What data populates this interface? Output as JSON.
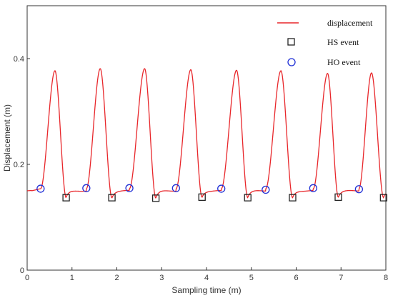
{
  "chart_data": {
    "type": "line",
    "xlabel": "Sampling time (m)",
    "ylabel": "Displacement (m)",
    "xlim": [
      0,
      8
    ],
    "ylim": [
      0,
      0.5
    ],
    "xticks": [
      "0",
      "1",
      "2",
      "3",
      "4",
      "5",
      "6",
      "7",
      "8"
    ],
    "yticks": [
      {
        "value": 0,
        "label": "0"
      },
      {
        "value": 0.2,
        "label": "0.2"
      },
      {
        "value": 0.4,
        "label": "0.4"
      }
    ],
    "grid": false,
    "legend_position": "top-right",
    "series": [
      {
        "name": "displacement",
        "kind": "line",
        "color": "#e8262a",
        "baseline": 0.15,
        "cycles": [
          {
            "start": 0.3,
            "peak_x": 0.62,
            "peak_y": 0.377,
            "trough_x": 0.87,
            "trough_y": 0.137
          },
          {
            "start": 1.32,
            "peak_x": 1.63,
            "peak_y": 0.381,
            "trough_x": 1.89,
            "trough_y": 0.137
          },
          {
            "start": 2.28,
            "peak_x": 2.62,
            "peak_y": 0.381,
            "trough_x": 2.87,
            "trough_y": 0.136
          },
          {
            "start": 3.32,
            "peak_x": 3.65,
            "peak_y": 0.379,
            "trough_x": 3.9,
            "trough_y": 0.138
          },
          {
            "start": 4.33,
            "peak_x": 4.67,
            "peak_y": 0.378,
            "trough_x": 4.92,
            "trough_y": 0.137
          },
          {
            "start": 5.32,
            "peak_x": 5.66,
            "peak_y": 0.377,
            "trough_x": 5.92,
            "trough_y": 0.137
          },
          {
            "start": 6.38,
            "peak_x": 6.7,
            "peak_y": 0.372,
            "trough_x": 6.94,
            "trough_y": 0.138
          },
          {
            "start": 7.4,
            "peak_x": 7.68,
            "peak_y": 0.373,
            "trough_x": 7.95,
            "trough_y": 0.137
          }
        ]
      },
      {
        "name": "HS event",
        "kind": "marker",
        "marker": "square",
        "color": "#222222",
        "x": [
          0.87,
          1.89,
          2.87,
          3.9,
          4.92,
          5.92,
          6.94,
          7.95
        ],
        "y": [
          0.137,
          0.137,
          0.136,
          0.138,
          0.137,
          0.137,
          0.138,
          0.137
        ]
      },
      {
        "name": "HO event",
        "kind": "marker",
        "marker": "circle",
        "color": "#1f2fd6",
        "x": [
          0.3,
          1.32,
          2.28,
          3.32,
          4.33,
          5.32,
          6.38,
          7.4
        ],
        "y": [
          0.154,
          0.155,
          0.155,
          0.155,
          0.154,
          0.152,
          0.155,
          0.153
        ]
      }
    ]
  }
}
